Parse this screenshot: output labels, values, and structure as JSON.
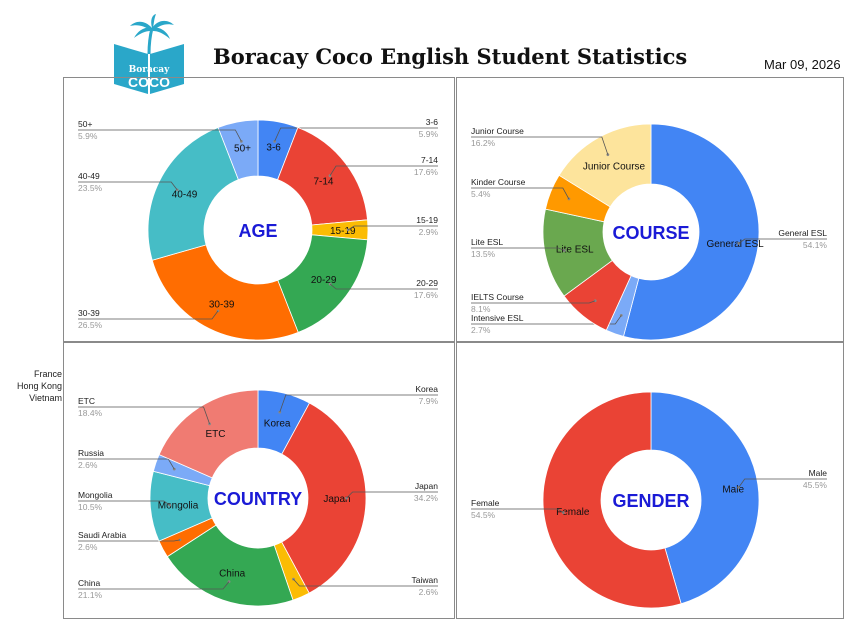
{
  "header": {
    "title": "Boracay Coco English Student Statistics",
    "date": "Mar 09, 2026",
    "logo_text_top": "Boracay",
    "logo_text_bottom": "COCO"
  },
  "side_labels": [
    "France",
    "Hong Kong",
    "Vietnam"
  ],
  "colors": {
    "blue": "#4285f4",
    "red": "#ea4335",
    "yellow": "#fbbc04",
    "green": "#34a853",
    "orange": "#ff6d01",
    "teal": "#46bdc6",
    "lightblue": "#7baaf7",
    "salmon": "#f07b72",
    "paleyellow": "#fde49c",
    "limegreen": "#6aa84f",
    "center_text": "#1a1ad6",
    "logo": "#2aa7c9"
  },
  "chart_data": [
    {
      "type": "pie",
      "center_label": "AGE",
      "slices": [
        {
          "label": "3-6",
          "value": 5.9,
          "pct": "5.9%",
          "color": "#4285f4"
        },
        {
          "label": "7-14",
          "value": 17.6,
          "pct": "17.6%",
          "color": "#ea4335"
        },
        {
          "label": "15-19",
          "value": 2.9,
          "pct": "2.9%",
          "color": "#fbbc04"
        },
        {
          "label": "20-29",
          "value": 17.6,
          "pct": "17.6%",
          "color": "#34a853"
        },
        {
          "label": "30-39",
          "value": 26.5,
          "pct": "26.5%",
          "color": "#ff6d01"
        },
        {
          "label": "40-49",
          "value": 23.5,
          "pct": "23.5%",
          "color": "#46bdc6"
        },
        {
          "label": "50+",
          "value": 5.9,
          "pct": "5.9%",
          "color": "#7baaf7"
        }
      ]
    },
    {
      "type": "pie",
      "center_label": "COURSE",
      "slices": [
        {
          "label": "General ESL",
          "value": 54.1,
          "pct": "54.1%",
          "color": "#4285f4"
        },
        {
          "label": "Intensive ESL",
          "value": 2.7,
          "pct": "2.7%",
          "color": "#7baaf7"
        },
        {
          "label": "IELTS Course",
          "value": 8.1,
          "pct": "8.1%",
          "color": "#ea4335"
        },
        {
          "label": "Lite ESL",
          "value": 13.5,
          "pct": "13.5%",
          "color": "#6aa84f"
        },
        {
          "label": "Kinder Course",
          "value": 5.4,
          "pct": "5.4%",
          "color": "#ff9900"
        },
        {
          "label": "Junior Course",
          "value": 16.2,
          "pct": "16.2%",
          "color": "#fde49c"
        }
      ]
    },
    {
      "type": "pie",
      "center_label": "COUNTRY",
      "slices": [
        {
          "label": "Korea",
          "value": 7.9,
          "pct": "7.9%",
          "color": "#4285f4"
        },
        {
          "label": "Japan",
          "value": 34.2,
          "pct": "34.2%",
          "color": "#ea4335"
        },
        {
          "label": "Taiwan",
          "value": 2.6,
          "pct": "2.6%",
          "color": "#fbbc04"
        },
        {
          "label": "China",
          "value": 21.1,
          "pct": "21.1%",
          "color": "#34a853"
        },
        {
          "label": "Saudi Arabia",
          "value": 2.6,
          "pct": "2.6%",
          "color": "#ff6d01"
        },
        {
          "label": "Mongolia",
          "value": 10.5,
          "pct": "10.5%",
          "color": "#46bdc6"
        },
        {
          "label": "Russia",
          "value": 2.6,
          "pct": "2.6%",
          "color": "#7baaf7"
        },
        {
          "label": "ETC",
          "value": 18.4,
          "pct": "18.4%",
          "color": "#f07b72"
        }
      ]
    },
    {
      "type": "pie",
      "center_label": "GENDER",
      "slices": [
        {
          "label": "Male",
          "value": 45.5,
          "pct": "45.5%",
          "color": "#4285f4"
        },
        {
          "label": "Female",
          "value": 54.5,
          "pct": "54.5%",
          "color": "#ea4335"
        }
      ]
    }
  ]
}
